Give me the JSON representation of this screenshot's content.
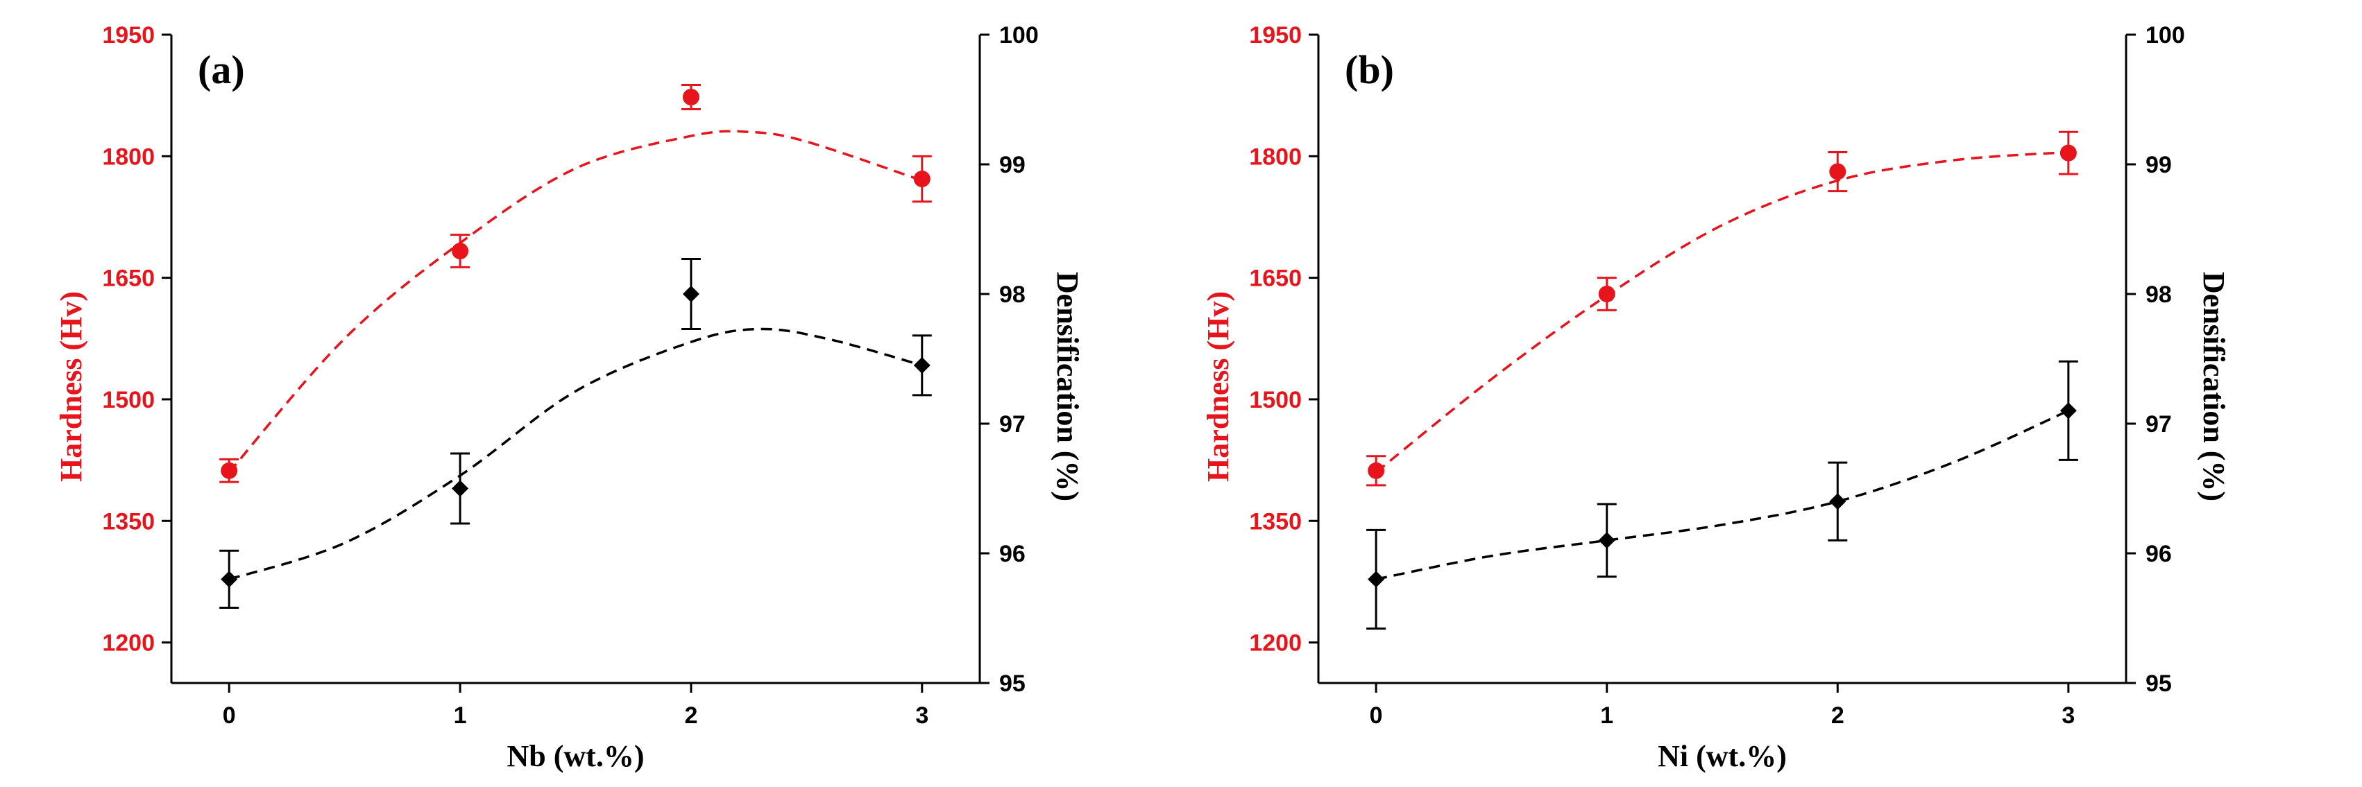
{
  "chart_data": [
    {
      "type": "line",
      "panel_label": "(a)",
      "xlabel": "Nb (wt.%)",
      "ylabel_left": "Hardness (Hv)",
      "ylabel_right": "Densification (%)",
      "categories": [
        "0",
        "1",
        "2",
        "3"
      ],
      "x": [
        0,
        1,
        2,
        3
      ],
      "xlim": [
        -0.25,
        3.25
      ],
      "ylim_left": [
        1150,
        1950
      ],
      "ylim_right": [
        95,
        100
      ],
      "yticks_left": [
        "1200",
        "1350",
        "1500",
        "1650",
        "1800",
        "1950"
      ],
      "yticks_right": [
        "95",
        "96",
        "97",
        "98",
        "99",
        "100"
      ],
      "series": [
        {
          "name": "Hardness",
          "axis": "left",
          "marker": "circle",
          "color": "#e8141c",
          "values": [
            1412,
            1683,
            1873,
            1772
          ],
          "errors": [
            14,
            20,
            15,
            28
          ],
          "fit_x": [
            0,
            0.5,
            1,
            1.5,
            2,
            2.25,
            2.5,
            3
          ],
          "fit_y": [
            1410,
            1575,
            1693,
            1785,
            1825,
            1830,
            1818,
            1770
          ]
        },
        {
          "name": "Densification",
          "axis": "right",
          "marker": "diamond",
          "color": "#000000",
          "values": [
            95.8,
            96.5,
            98.0,
            97.45
          ],
          "errors": [
            0.22,
            0.27,
            0.27,
            0.23
          ],
          "fit_x": [
            0,
            0.5,
            1,
            1.5,
            2,
            2.3,
            2.6,
            3
          ],
          "fit_y": [
            95.8,
            96.08,
            96.6,
            97.25,
            97.63,
            97.73,
            97.65,
            97.45
          ]
        }
      ]
    },
    {
      "type": "line",
      "panel_label": "(b)",
      "xlabel": "Ni (wt.%)",
      "ylabel_left": "Hardness (Hv)",
      "ylabel_right": "Densification (%)",
      "categories": [
        "0",
        "1",
        "2",
        "3"
      ],
      "x": [
        0,
        1,
        2,
        3
      ],
      "xlim": [
        -0.25,
        3.25
      ],
      "ylim_left": [
        1150,
        1950
      ],
      "ylim_right": [
        95,
        100
      ],
      "yticks_left": [
        "1200",
        "1350",
        "1500",
        "1650",
        "1800",
        "1950"
      ],
      "yticks_right": [
        "95",
        "96",
        "97",
        "98",
        "99",
        "100"
      ],
      "series": [
        {
          "name": "Hardness",
          "axis": "left",
          "marker": "circle",
          "color": "#e8141c",
          "values": [
            1412,
            1630,
            1781,
            1804
          ],
          "errors": [
            18,
            20,
            24,
            26
          ],
          "fit_x": [
            0,
            0.5,
            1,
            1.5,
            2,
            2.5,
            3
          ],
          "fit_y": [
            1410,
            1525,
            1628,
            1715,
            1770,
            1795,
            1805
          ]
        },
        {
          "name": "Densification",
          "axis": "right",
          "marker": "diamond",
          "color": "#000000",
          "values": [
            95.8,
            96.1,
            96.4,
            97.1
          ],
          "errors": [
            0.38,
            0.28,
            0.3,
            0.38
          ],
          "fit_x": [
            0,
            0.5,
            1,
            1.5,
            2,
            2.5,
            3
          ],
          "fit_y": [
            95.8,
            95.98,
            96.1,
            96.22,
            96.4,
            96.7,
            97.1
          ]
        }
      ]
    }
  ]
}
